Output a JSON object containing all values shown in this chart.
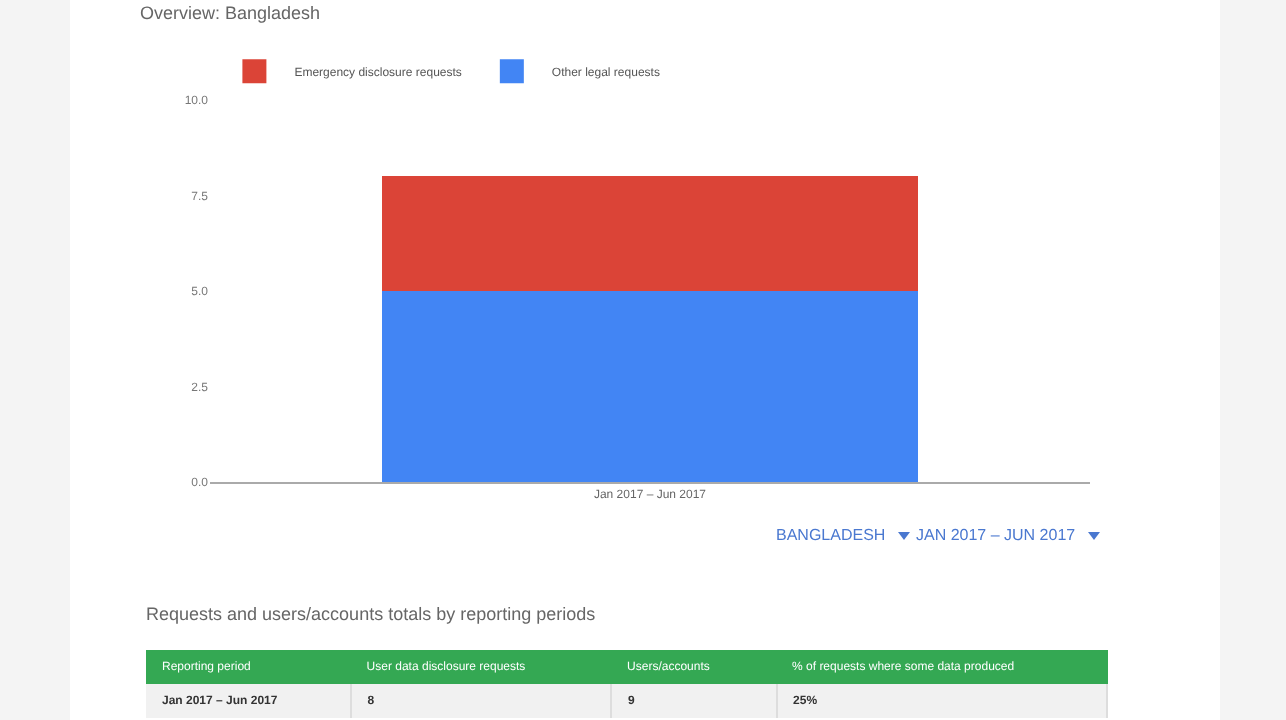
{
  "chart_data": {
    "type": "bar",
    "title": "Overview: Bangladesh",
    "stacked": true,
    "categories": [
      "Jan 2017 – Jun 2017"
    ],
    "series": [
      {
        "name": "Other legal requests",
        "color": "#4285f4",
        "values": [
          5
        ]
      },
      {
        "name": "Emergency disclosure requests",
        "color": "#db4437",
        "values": [
          3
        ]
      }
    ],
    "ylim": [
      0,
      10
    ],
    "yticks": [
      {
        "value": 0,
        "label": "0.0"
      },
      {
        "value": 2.5,
        "label": "2.5"
      },
      {
        "value": 5,
        "label": "5.0"
      },
      {
        "value": 7.5,
        "label": "7.5"
      },
      {
        "value": 10,
        "label": "10.0"
      }
    ],
    "grid": false,
    "legend": "top left",
    "annotations": [
      "BANGLADESH",
      "JAN 2017 – JUN 2017",
      "Requests and users/accounts totals by reporting periods",
      "Reporting period",
      "User data disclosure requests",
      "Users/accounts",
      "% of requests where some data produced",
      "Jan 2017 – Jun 2017",
      "8",
      "9",
      "25%"
    ]
  }
}
